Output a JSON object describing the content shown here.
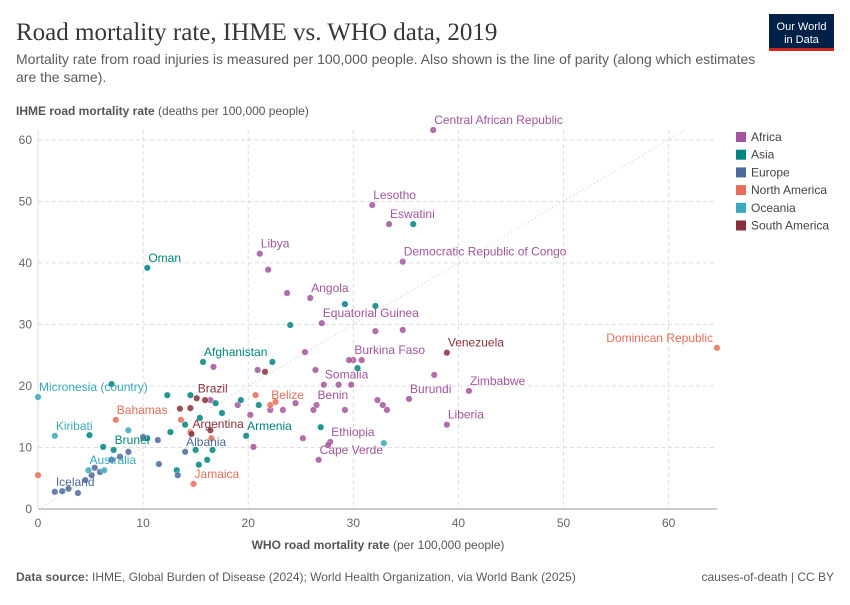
{
  "chart_data": {
    "type": "scatter",
    "title": "Road mortality rate, IHME vs. WHO data, 2019",
    "subtitle": "Mortality rate from road injuries is measured per 100,000 people. Also shown is the line of parity (along which estimates are the same).",
    "y_label": "IHME road mortality rate",
    "y_label_unit": "(deaths per 100,000 people)",
    "x_label": "WHO road mortality rate",
    "x_label_unit": "(per 100,000 people)",
    "source_label": "Data source:",
    "source": "IHME, Global Burden of Disease (2024); World Health Organization, via World Bank (2025)",
    "license": "causes-of-death | CC BY",
    "logo": [
      "Our World",
      "in Data"
    ],
    "xlim": [
      0,
      64.6
    ],
    "ylim": [
      0,
      61.6
    ],
    "xticks": [
      0,
      10,
      20,
      30,
      40,
      50,
      60
    ],
    "yticks": [
      0,
      10,
      20,
      30,
      40,
      50,
      60
    ],
    "grid": true,
    "legend": "right",
    "parity_line": true,
    "series": [
      {
        "name": "Africa",
        "color": "#a2559c",
        "x": [
          37.6,
          31.8,
          33.4,
          21.1,
          34.7,
          25.9,
          27.0,
          30.0,
          27.2,
          41.0,
          35.3,
          26.5,
          38.9,
          27.8,
          26.7,
          21.9,
          23.7,
          29.6,
          30.8,
          25.4,
          29.8,
          28.6,
          37.7,
          26.4,
          32.3,
          32.8,
          33.2,
          34.7,
          32.1,
          29.2,
          26.2,
          25.2,
          27.6,
          20.5,
          24.5,
          23.3,
          16.7,
          20.9,
          16.4,
          20.2,
          19.0,
          22.1
        ],
        "y": [
          61.6,
          49.4,
          46.3,
          41.5,
          40.2,
          34.3,
          30.2,
          24.2,
          20.2,
          19.2,
          17.9,
          16.9,
          13.7,
          10.9,
          8.0,
          38.9,
          35.1,
          24.2,
          24.2,
          25.5,
          20.2,
          20.2,
          21.8,
          22.6,
          17.7,
          16.9,
          16.1,
          29.1,
          28.9,
          16.1,
          16.1,
          11.5,
          10.4,
          10.1,
          17.2,
          16.1,
          23.1,
          22.6,
          17.7,
          15.3,
          16.9,
          16.1
        ],
        "labels": [
          "Central African Republic",
          "Lesotho",
          "Eswatini",
          "Libya",
          "Democratic Republic of Congo",
          "Angola",
          "Equatorial Guinea",
          "Burkina Faso",
          "Somalia",
          "Zimbabwe",
          "Burundi",
          "Benin",
          "Liberia",
          "Ethiopia",
          "Cape Verde",
          null,
          null,
          null,
          null,
          null,
          null,
          null,
          null,
          null,
          null,
          null,
          null,
          null,
          null,
          null,
          null,
          null,
          null,
          null,
          null,
          null,
          null,
          null,
          null,
          null,
          null,
          null
        ]
      },
      {
        "name": "Asia",
        "color": "#00847e",
        "x": [
          10.4,
          15.7,
          19.8,
          7.2,
          35.7,
          29.2,
          32.1,
          24.0,
          22.3,
          30.4,
          7.0,
          12.3,
          14.5,
          16.9,
          19.3,
          21.0,
          26.9,
          15.4,
          17.5,
          14.0,
          12.6,
          16.6,
          15.0,
          16.1,
          13.2,
          15.3,
          4.9,
          6.2,
          10.4
        ],
        "y": [
          39.2,
          23.9,
          11.9,
          9.6,
          46.3,
          33.3,
          33.0,
          29.9,
          23.9,
          22.9,
          20.3,
          18.5,
          18.5,
          17.2,
          17.7,
          16.9,
          13.3,
          14.8,
          15.6,
          13.7,
          12.5,
          9.6,
          9.6,
          8.0,
          6.3,
          7.2,
          12.0,
          10.1,
          11.5
        ],
        "labels": [
          "Oman",
          "Afghanistan",
          "Armenia",
          "Brunei",
          null,
          null,
          null,
          null,
          null,
          null,
          null,
          null,
          null,
          null,
          null,
          null,
          null,
          null,
          null,
          null,
          null,
          null,
          null,
          null,
          null,
          null,
          null,
          null,
          null
        ]
      },
      {
        "name": "Europe",
        "color": "#4c6a9c",
        "x": [
          14.0,
          1.6,
          3.8,
          2.9,
          4.5,
          5.1,
          5.9,
          7.0,
          7.8,
          8.6,
          10.0,
          11.5,
          11.4,
          13.3,
          2.3,
          5.4
        ],
        "y": [
          9.3,
          2.8,
          2.6,
          3.3,
          4.7,
          5.5,
          6.0,
          8.0,
          8.5,
          9.3,
          11.7,
          7.3,
          11.2,
          5.5,
          2.9,
          6.7
        ],
        "labels": [
          "Albania",
          "Iceland",
          null,
          null,
          null,
          null,
          null,
          null,
          null,
          null,
          null,
          null,
          null,
          null,
          null,
          null
        ]
      },
      {
        "name": "North America",
        "color": "#e56e5a",
        "x": [
          64.6,
          22.1,
          7.4,
          14.8,
          0.0,
          20.7,
          16.5,
          14.5,
          22.6,
          13.6
        ],
        "y": [
          26.2,
          16.9,
          14.5,
          4.1,
          5.5,
          18.5,
          11.5,
          12.5,
          17.4,
          14.5
        ],
        "labels": [
          "Dominican Republic",
          "Belize",
          "Bahamas",
          "Jamaica",
          null,
          null,
          null,
          null,
          null,
          null
        ]
      },
      {
        "name": "Oceania",
        "color": "#38aaba",
        "x": [
          0.0,
          1.6,
          4.8,
          32.9,
          6.3,
          8.6
        ],
        "y": [
          18.2,
          11.9,
          6.3,
          10.7,
          6.3,
          12.8
        ],
        "labels": [
          "Micronesia (country)",
          "Kiribati",
          "Australia",
          null,
          null,
          null
        ]
      },
      {
        "name": "South America",
        "color": "#883039",
        "x": [
          38.9,
          15.1,
          14.6,
          21.6,
          15.9,
          14.5,
          13.5,
          16.4
        ],
        "y": [
          25.4,
          18.0,
          12.2,
          22.3,
          17.7,
          16.4,
          16.3,
          12.8
        ],
        "labels": [
          "Venezuela",
          "Brazil",
          "Argentina",
          null,
          null,
          null,
          null,
          null
        ]
      }
    ]
  }
}
